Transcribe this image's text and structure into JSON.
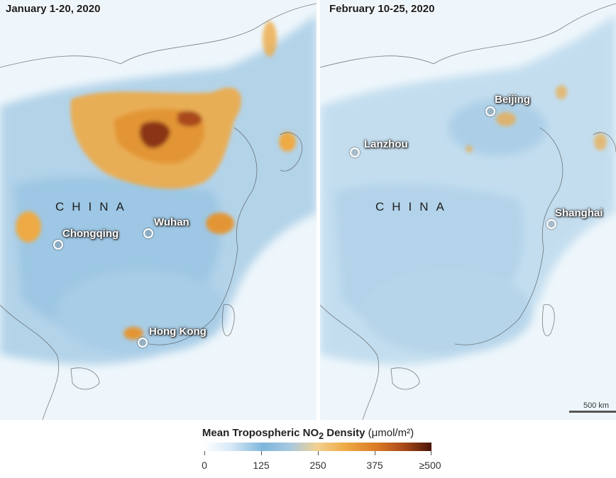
{
  "panels": {
    "left": {
      "title": "January 1-20, 2020",
      "country": "CHINA",
      "cities": [
        "Chongqing",
        "Wuhan",
        "Hong Kong"
      ]
    },
    "right": {
      "title": "February 10-25, 2020",
      "country": "CHINA",
      "cities": [
        "Beijing",
        "Lanzhou",
        "Shanghai"
      ]
    }
  },
  "scale_bar": {
    "label": "500 km"
  },
  "legend": {
    "title_prefix": "Mean Tropospheric NO",
    "title_subscript": "2",
    "title_suffix": " Density",
    "unit": "(μmol/m²)",
    "ticks": [
      "0",
      "125",
      "250",
      "375",
      "≥500"
    ],
    "colors": [
      "#ffffff",
      "#7eb6dc",
      "#eeaa45",
      "#d97a25",
      "#4a1407"
    ]
  }
}
